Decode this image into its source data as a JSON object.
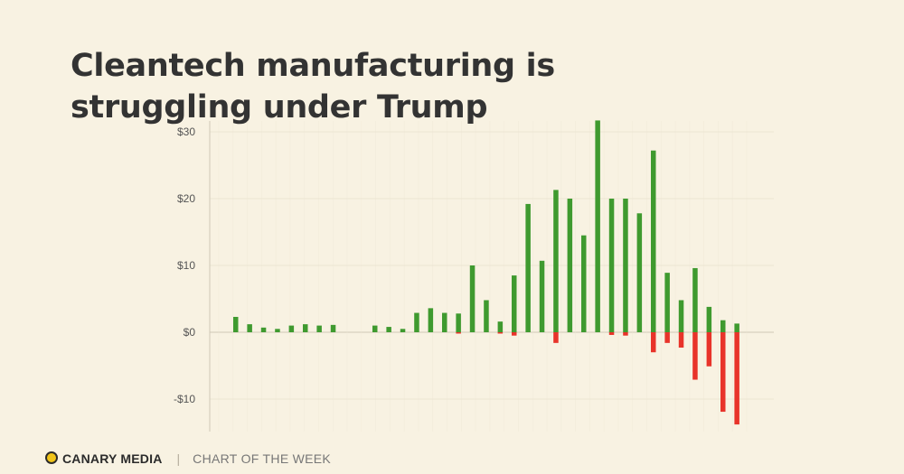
{
  "title": "Cleantech manufacturing is struggling under Trump",
  "footer": {
    "brand": "CANARY MEDIA",
    "separator": "|",
    "tagline": "CHART OF THE WEEK"
  },
  "colors": {
    "background": "#f8f2e2",
    "positive": "#3f9a2f",
    "negative": "#e8332a",
    "grid": "#ece5d3",
    "axis": "#cfc8b6",
    "logo_accent": "#f0c419"
  },
  "chart_data": {
    "type": "bar",
    "title": "Cleantech manufacturing is struggling under Trump",
    "xlabel": "",
    "ylabel": "",
    "ylim": [
      -14,
      31
    ],
    "yticks": [
      30,
      20,
      10,
      0,
      -10
    ],
    "ytick_labels": [
      "$30",
      "$20",
      "$10",
      "$0",
      "-$10"
    ],
    "grid": true,
    "legend": "none",
    "x_tick_labels": "none",
    "series": [
      {
        "color": "#3f9a2f",
        "values": [
          2.3,
          1.2,
          0.7,
          0.5,
          1.0,
          1.2,
          1.0,
          1.1,
          0,
          0,
          1.0,
          0.8,
          0.5,
          2.9,
          3.6,
          2.9,
          2.8,
          10.0,
          4.8,
          1.6,
          8.5,
          19.2,
          10.7,
          21.3,
          20.0,
          14.5,
          31.7,
          20.0,
          20.0,
          17.8,
          27.2,
          8.9,
          4.8,
          9.6,
          3.8,
          1.8,
          1.3
        ]
      },
      {
        "color": "#e8332a",
        "values": [
          0,
          0,
          0,
          0,
          0,
          0,
          0,
          0,
          0,
          0,
          0,
          0,
          0,
          0,
          0,
          0,
          -0.2,
          0,
          0,
          -0.2,
          -0.5,
          0,
          0,
          -1.6,
          0,
          0,
          0,
          -0.4,
          -0.5,
          0,
          -3.0,
          -1.6,
          -2.3,
          -7.1,
          -5.1,
          -11.9,
          -13.8
        ]
      }
    ]
  }
}
